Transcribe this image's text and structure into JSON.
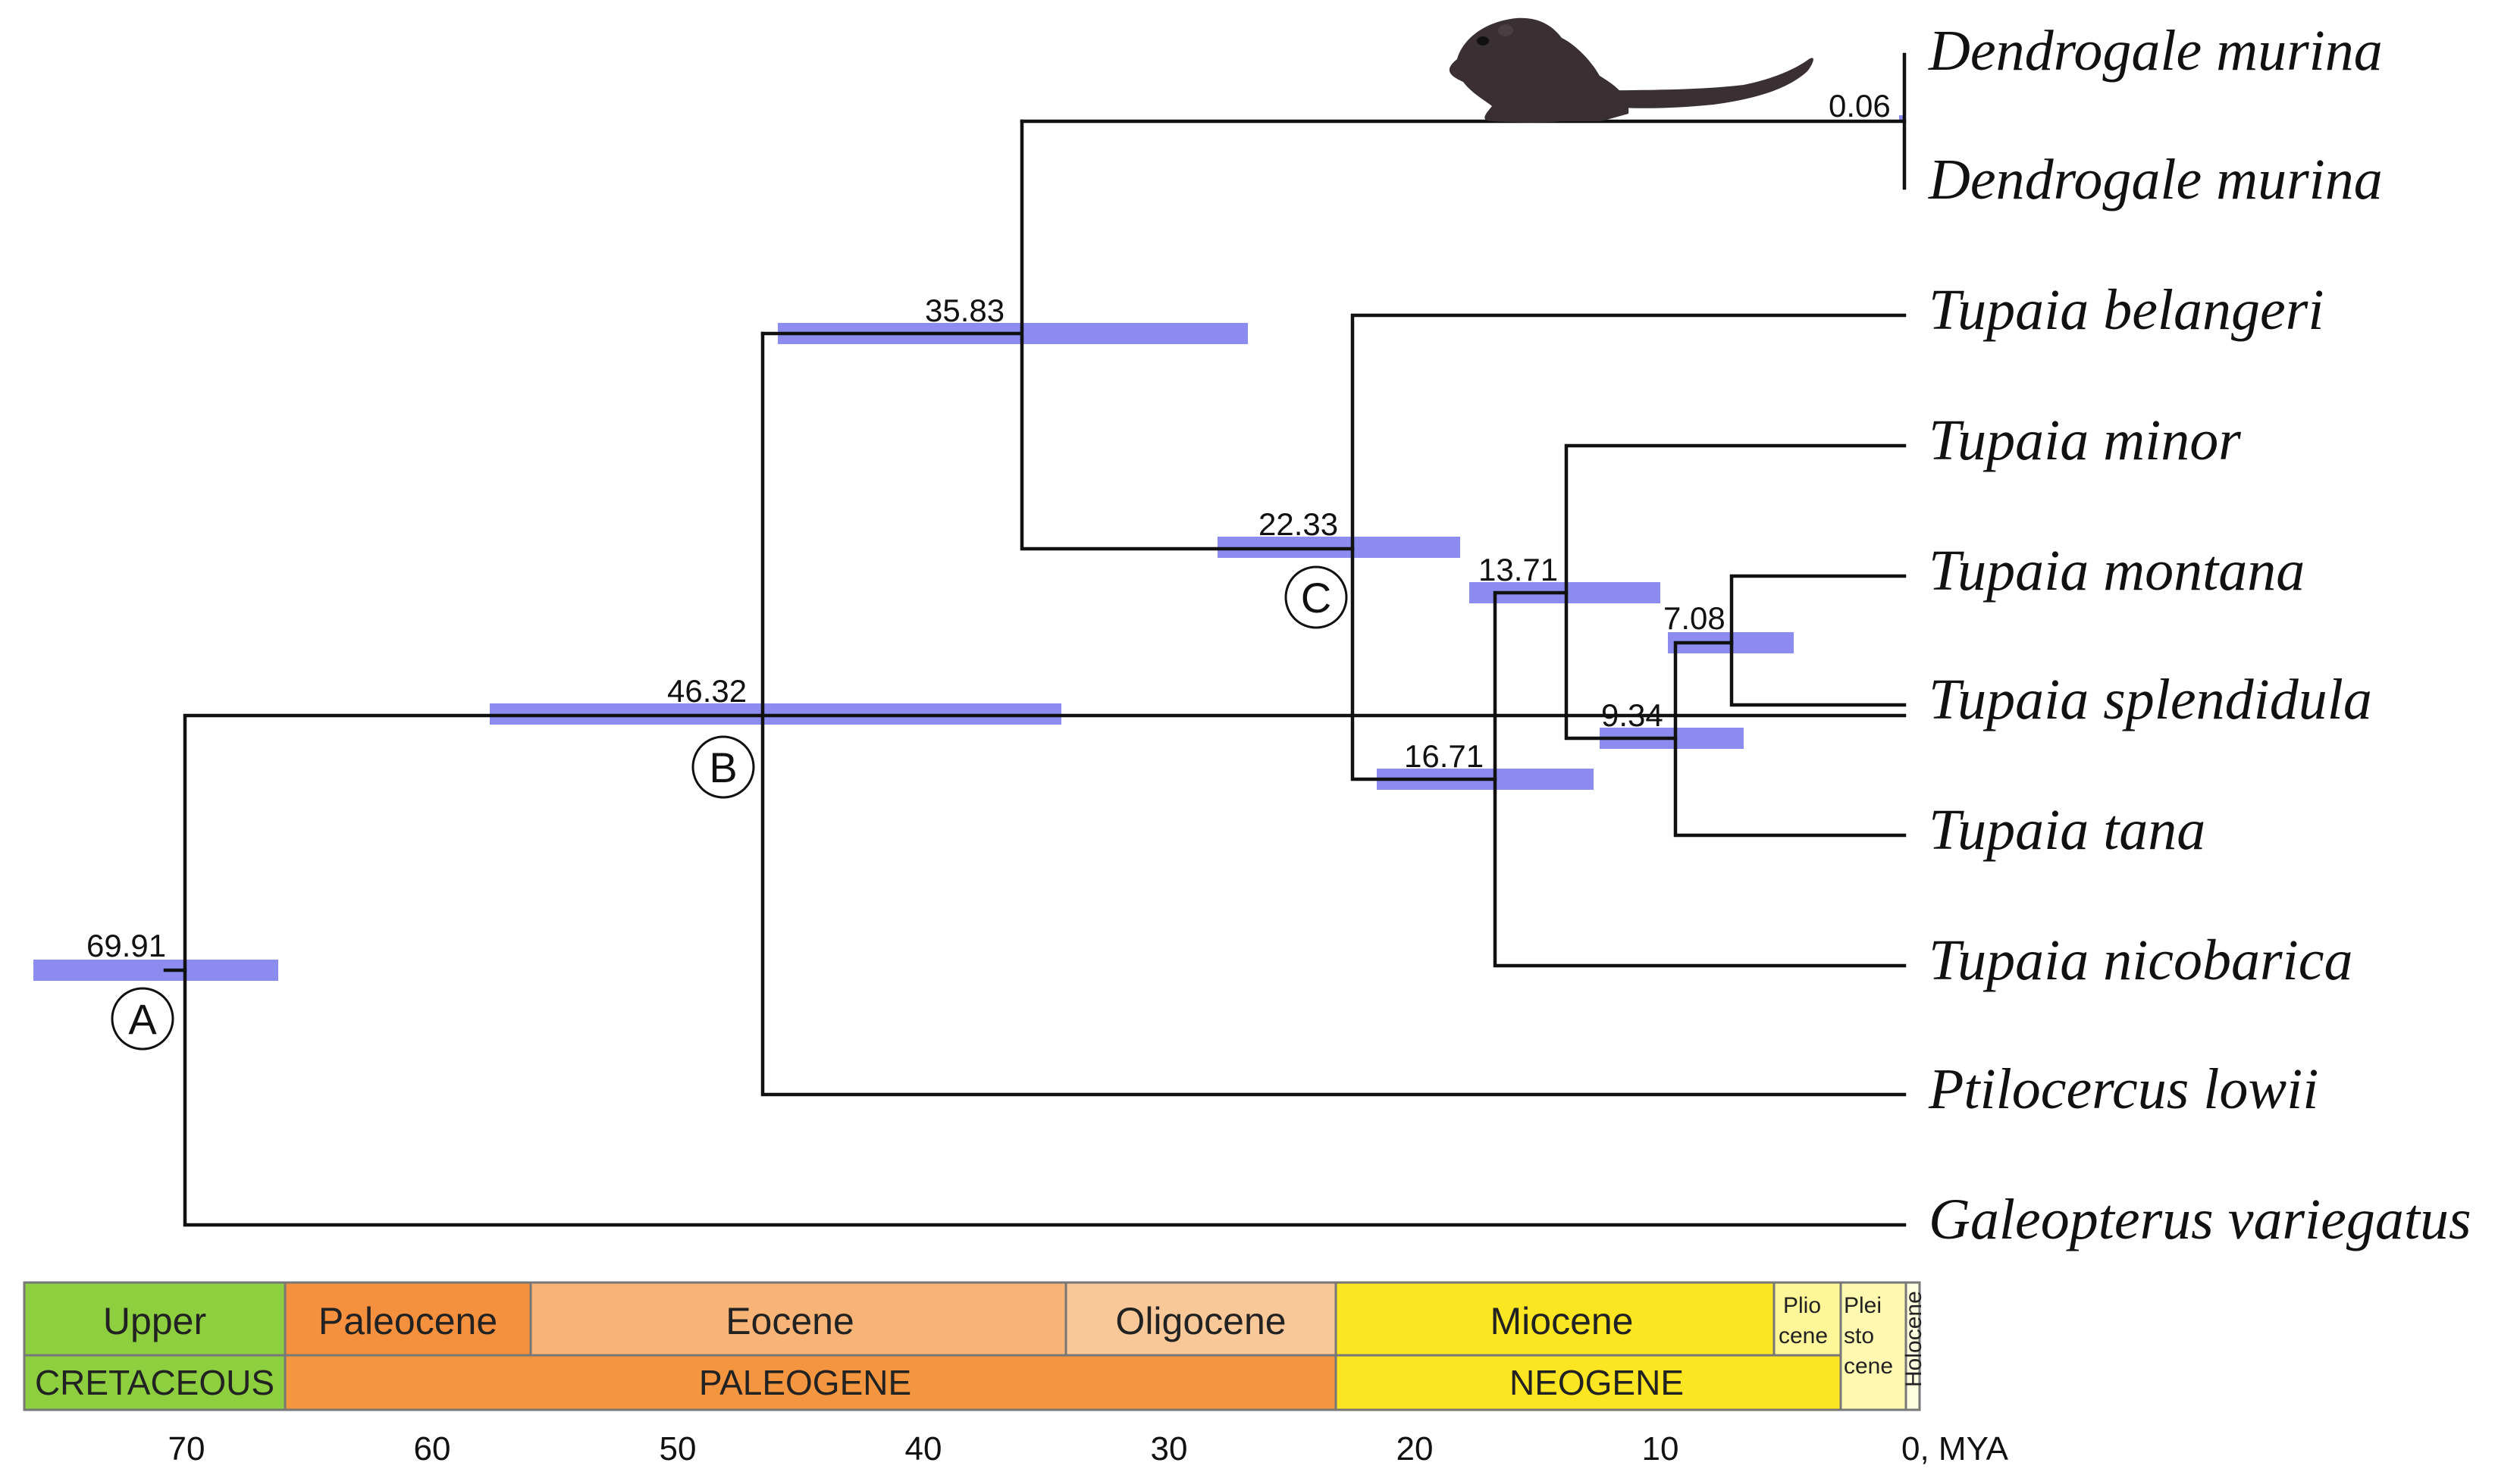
{
  "taxa": [
    "Dendrogale murina",
    "Dendrogale murina",
    "Tupaia belangeri",
    "Tupaia minor",
    "Tupaia montana",
    "Tupaia splendidula",
    "Tupaia tana",
    "Tupaia nicobarica",
    "Ptilocercus lowii",
    "Galeopterus variegatus"
  ],
  "node_ages": {
    "A": "69.91",
    "B": "46.32",
    "dendro_split": "35.83",
    "C": "22.33",
    "nicobarica_split": "16.71",
    "minor_split": "13.71",
    "tana_split": "9.34",
    "montana_splendidula": "7.08",
    "dendrogale_pair": "0.06"
  },
  "node_letters": {
    "A": "A",
    "B": "B",
    "C": "C"
  },
  "axis": {
    "ticks": [
      "70",
      "60",
      "50",
      "40",
      "30",
      "20",
      "10"
    ],
    "zero_label": "0, MYA"
  },
  "timescale": {
    "epochs": {
      "upper": "Upper",
      "paleocene": "Paleocene",
      "eocene": "Eocene",
      "oligocene": "Oligocene",
      "miocene": "Miocene",
      "pliocene_1": "Plio",
      "pliocene_2": "cene",
      "pleistocene_1": "Plei",
      "pleistocene_2": "sto",
      "pleistocene_3": "cene",
      "holocene": "Holocene"
    },
    "periods": {
      "cretaceous": "CRETACEOUS",
      "paleogene": "PALEOGENE",
      "neogene": "NEOGENE"
    }
  },
  "colors": {
    "cretaceous": "#8dcf3f",
    "paleocene": "#f4903e",
    "eocene": "#f8b476",
    "oligocene": "#f8c898",
    "paleogene": "#f4963f",
    "miocene": "#fce521",
    "neogene": "#fce521",
    "pliocene": "#fff69a",
    "pleistocene": "#fff8b0",
    "holocene": "#fefee0",
    "ci_bar": "#8080ee"
  }
}
